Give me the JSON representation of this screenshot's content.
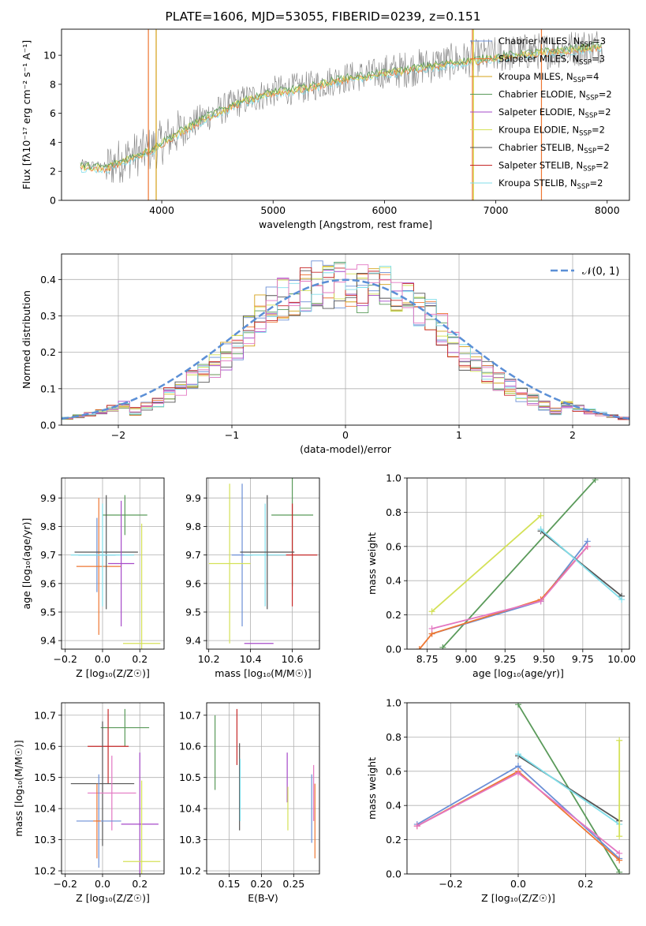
{
  "figure": {
    "title": "PLATE=1606, MJD=53055, FIBERID=0239, z=0.151"
  },
  "colors": {
    "Chabrier MILES": "#6b8fd6",
    "Salpeter MILES": "#ee7733",
    "Kroupa MILES": "#d4a017",
    "Chabrier ELODIE": "#5a9a5a",
    "Salpeter ELODIE": "#a64ac9",
    "Kroupa ELODIE": "#d4e157",
    "Chabrier STELIB": "#555555",
    "Salpeter STELIB": "#c62828",
    "Kroupa STELIB": "#80deea",
    "data": "#808080",
    "normal_curve": "#5b8fd6",
    "pink": "#e377c2",
    "grid": "#b0b0b0"
  },
  "chart_data": [
    {
      "id": "spectrum",
      "type": "line",
      "xlabel": "wavelength [Angstrom, rest frame]",
      "ylabel": "Flux [fλ10⁻¹⁷ erg cm⁻² s⁻¹ A⁻¹]",
      "xlim": [
        3100,
        8200
      ],
      "ylim": [
        0,
        11.8
      ],
      "xticks": [
        4000,
        5000,
        6000,
        7000,
        8000
      ],
      "yticks": [
        0,
        2,
        4,
        6,
        8,
        10
      ],
      "grid": false,
      "legend_position": "top-right",
      "legend": [
        {
          "label": "Chabrier MILES, N",
          "sub": "SSP",
          "tail": "=3",
          "key": "Chabrier MILES"
        },
        {
          "label": "Salpeter MILES, N",
          "sub": "SSP",
          "tail": "=3",
          "key": "Salpeter MILES"
        },
        {
          "label": "Kroupa MILES, N",
          "sub": "SSP",
          "tail": "=4",
          "key": "Kroupa MILES"
        },
        {
          "label": "Chabrier ELODIE, N",
          "sub": "SSP",
          "tail": "=2",
          "key": "Chabrier ELODIE"
        },
        {
          "label": "Salpeter ELODIE, N",
          "sub": "SSP",
          "tail": "=2",
          "key": "Salpeter ELODIE"
        },
        {
          "label": "Kroupa ELODIE, N",
          "sub": "SSP",
          "tail": "=2",
          "key": "Kroupa ELODIE"
        },
        {
          "label": "Chabrier STELIB, N",
          "sub": "SSP",
          "tail": "=2",
          "key": "Chabrier STELIB"
        },
        {
          "label": "Salpeter STELIB, N",
          "sub": "SSP",
          "tail": "=2",
          "key": "Salpeter STELIB"
        },
        {
          "label": "Kroupa STELIB, N",
          "sub": "SSP",
          "tail": "=2",
          "key": "Kroupa STELIB"
        }
      ],
      "data_trend": {
        "x": [
          3270,
          3500,
          3700,
          3900,
          4100,
          4400,
          4700,
          5000,
          5300,
          5600,
          6000,
          6400,
          6800,
          7200,
          7600,
          7950
        ],
        "y": [
          2.5,
          2.3,
          3.0,
          3.5,
          4.5,
          5.8,
          6.8,
          7.5,
          7.8,
          8.4,
          8.8,
          9.3,
          9.8,
          10.2,
          10.4,
          10.7
        ]
      },
      "model_trend": {
        "x": [
          3270,
          3500,
          3700,
          3900,
          4100,
          4400,
          4700,
          5000,
          5300,
          5600,
          6000,
          6400,
          6800,
          7200,
          7600,
          7950
        ],
        "y": [
          2.3,
          2.2,
          2.8,
          3.4,
          4.4,
          5.7,
          6.7,
          7.4,
          7.7,
          8.3,
          8.7,
          9.2,
          9.6,
          10.0,
          10.3,
          10.6
        ]
      }
    },
    {
      "id": "residuals",
      "type": "line",
      "xlabel": "(data-model)/error",
      "ylabel": "Normed distribution",
      "xlim": [
        -2.5,
        2.5
      ],
      "ylim": [
        0,
        0.47
      ],
      "xticks": [
        -2,
        -1,
        0,
        1,
        2
      ],
      "yticks": [
        0.0,
        0.1,
        0.2,
        0.3,
        0.4
      ],
      "grid": true,
      "legend_position": "top-right",
      "legend_label": "𝒩(0, 1)",
      "normal": {
        "mu": 0,
        "sigma": 1
      }
    },
    {
      "id": "age-vs-Z",
      "type": "scatter",
      "xlabel": "Z [log₁₀(Z/Z☉)]",
      "ylabel": "age  [log₁₀(age/yr)]",
      "xlim": [
        -0.22,
        0.33
      ],
      "ylim": [
        9.37,
        9.97
      ],
      "xticks": [
        -0.2,
        0.0,
        0.2
      ],
      "yticks": [
        9.4,
        9.5,
        9.6,
        9.7,
        9.8,
        9.9
      ],
      "grid": true,
      "points": [
        {
          "key": "Chabrier MILES",
          "x": -0.03,
          "xe": 0.1,
          "y": 9.7,
          "ye": 0.13
        },
        {
          "key": "Salpeter MILES",
          "x": -0.02,
          "xe": 0.12,
          "y": 9.66,
          "ye": 0.24
        },
        {
          "key": "Chabrier ELODIE",
          "x": 0.12,
          "xe": 0.12,
          "y": 9.84,
          "ye": 0.07
        },
        {
          "key": "Kroupa ELODIE",
          "x": 0.21,
          "xe": 0.1,
          "y": 9.39,
          "ye": 0.42
        },
        {
          "key": "Chabrier STELIB",
          "x": 0.02,
          "xe": 0.17,
          "y": 9.71,
          "ye": 0.2
        },
        {
          "key": "Kroupa STELIB",
          "x": 0.0,
          "xe": 0.17,
          "y": 9.7,
          "ye": 0.18
        },
        {
          "key": "Salpeter ELODIE",
          "x": 0.1,
          "xe": 0.07,
          "y": 9.67,
          "ye": 0.22
        }
      ]
    },
    {
      "id": "age-vs-mass",
      "type": "scatter",
      "xlabel": "mass [log₁₀(M/M☉)]",
      "ylabel": "",
      "xlim": [
        10.19,
        10.73
      ],
      "ylim": [
        9.37,
        9.97
      ],
      "xticks": [
        10.2,
        10.4,
        10.6
      ],
      "yticks": [
        9.4,
        9.5,
        9.6,
        9.7,
        9.8,
        9.9
      ],
      "grid": true,
      "points": [
        {
          "key": "Chabrier MILES",
          "x": 10.36,
          "xe": 0.05,
          "y": 9.7,
          "ye": 0.25
        },
        {
          "key": "Kroupa ELODIE",
          "x": 10.3,
          "xe": 0.1,
          "y": 9.67,
          "ye": 0.28
        },
        {
          "key": "Chabrier ELODIE",
          "x": 10.6,
          "xe": 0.1,
          "y": 9.84,
          "ye": 0.25
        },
        {
          "key": "Salpeter STELIB",
          "x": 10.6,
          "xe": 0.12,
          "y": 9.7,
          "ye": 0.18
        },
        {
          "key": "Kroupa STELIB",
          "x": 10.47,
          "xe": 0.1,
          "y": 9.7,
          "ye": 0.18
        },
        {
          "key": "Chabrier STELIB",
          "x": 10.48,
          "xe": 0.13,
          "y": 9.71,
          "ye": 0.2
        },
        {
          "key": "Salpeter ELODIE",
          "x": 10.44,
          "xe": 0.07,
          "y": 9.39,
          "ye": 0.0
        }
      ]
    },
    {
      "id": "massweight-vs-age",
      "type": "line",
      "xlabel": "age  [log₁₀(age/yr)]",
      "ylabel": "mass weight",
      "xlim": [
        8.62,
        10.05
      ],
      "ylim": [
        0,
        1.0
      ],
      "xticks": [
        8.75,
        9.0,
        9.25,
        9.5,
        9.75,
        10.0
      ],
      "yticks": [
        0.0,
        0.2,
        0.4,
        0.6,
        0.8,
        1.0
      ],
      "grid": true,
      "series": [
        {
          "key": "Kroupa ELODIE",
          "x": [
            8.78,
            9.48
          ],
          "y": [
            0.22,
            0.78
          ]
        },
        {
          "key": "Chabrier ELODIE",
          "x": [
            8.85,
            9.83
          ],
          "y": [
            0.01,
            0.99
          ]
        },
        {
          "key": "Chabrier MILES",
          "x": [
            8.78,
            9.48,
            9.78
          ],
          "y": [
            0.09,
            0.28,
            0.63
          ]
        },
        {
          "key": "Salpeter MILES",
          "x": [
            8.7,
            8.78,
            9.48,
            9.78
          ],
          "y": [
            0.0,
            0.09,
            0.29,
            0.6
          ]
        },
        {
          "key": "pink",
          "x": [
            8.78,
            9.48,
            9.78
          ],
          "y": [
            0.12,
            0.28,
            0.6
          ]
        },
        {
          "key": "Chabrier STELIB",
          "x": [
            9.48,
            10.0
          ],
          "y": [
            0.69,
            0.31
          ]
        },
        {
          "key": "Kroupa STELIB",
          "x": [
            9.48,
            10.0
          ],
          "y": [
            0.7,
            0.29
          ]
        }
      ]
    },
    {
      "id": "mass-vs-Z",
      "type": "scatter",
      "xlabel": "Z [log₁₀(Z/Z☉)]",
      "ylabel": "mass [log₁₀(M/M☉)]",
      "xlim": [
        -0.22,
        0.33
      ],
      "ylim": [
        10.19,
        10.74
      ],
      "xticks": [
        -0.2,
        0.0,
        0.2
      ],
      "yticks": [
        10.2,
        10.3,
        10.4,
        10.5,
        10.6,
        10.7
      ],
      "grid": true,
      "points": [
        {
          "key": "Chabrier ELODIE",
          "x": 0.12,
          "xe": 0.13,
          "y": 10.66,
          "ye": 0.06
        },
        {
          "key": "Salpeter STELIB",
          "x": 0.03,
          "xe": 0.11,
          "y": 10.6,
          "ye": 0.12
        },
        {
          "key": "Chabrier STELIB",
          "x": 0.0,
          "xe": 0.17,
          "y": 10.48,
          "ye": 0.2
        },
        {
          "key": "pink",
          "x": 0.05,
          "xe": 0.13,
          "y": 10.45,
          "ye": 0.12
        },
        {
          "key": "Chabrier MILES",
          "x": -0.02,
          "xe": 0.12,
          "y": 10.36,
          "ye": 0.15
        },
        {
          "key": "Salpeter ELODIE",
          "x": 0.2,
          "xe": 0.1,
          "y": 10.35,
          "ye": 0.23
        },
        {
          "key": "Kroupa ELODIE",
          "x": 0.21,
          "xe": 0.1,
          "y": 10.23,
          "ye": 0.26
        },
        {
          "key": "Salpeter MILES",
          "x": -0.03,
          "xe": 0.02,
          "y": 10.36,
          "ye": 0.12
        }
      ]
    },
    {
      "id": "mass-vs-ebv",
      "type": "scatter",
      "xlabel": "E(B-V)",
      "ylabel": "",
      "xlim": [
        0.115,
        0.29
      ],
      "ylim": [
        10.19,
        10.74
      ],
      "xticks": [
        0.15,
        0.2,
        0.25
      ],
      "yticks": [
        10.2,
        10.3,
        10.4,
        10.5,
        10.6,
        10.7
      ],
      "grid": true,
      "points": [
        {
          "key": "Chabrier ELODIE",
          "x": 0.128,
          "y": 10.58,
          "ye": 0.12
        },
        {
          "key": "Salpeter STELIB",
          "x": 0.162,
          "y": 10.63,
          "ye": 0.09
        },
        {
          "key": "Chabrier STELIB",
          "x": 0.166,
          "y": 10.47,
          "ye": 0.14
        },
        {
          "key": "Kroupa STELIB",
          "x": 0.167,
          "y": 10.46,
          "ye": 0.1
        },
        {
          "key": "Salpeter ELODIE",
          "x": 0.24,
          "y": 10.5,
          "ye": 0.08
        },
        {
          "key": "Kroupa ELODIE",
          "x": 0.241,
          "y": 10.4,
          "ye": 0.07
        },
        {
          "key": "Chabrier MILES",
          "x": 0.278,
          "y": 10.4,
          "ye": 0.11
        },
        {
          "key": "pink",
          "x": 0.281,
          "y": 10.45,
          "ye": 0.09
        },
        {
          "key": "Salpeter MILES",
          "x": 0.283,
          "y": 10.36,
          "ye": 0.12
        }
      ]
    },
    {
      "id": "massweight-vs-Z",
      "type": "line",
      "xlabel": "Z [log₁₀(Z/Z☉)]",
      "ylabel": "mass weight",
      "xlim": [
        -0.33,
        0.33
      ],
      "ylim": [
        0,
        1.0
      ],
      "xticks": [
        -0.2,
        0.0,
        0.2
      ],
      "yticks": [
        0.0,
        0.2,
        0.4,
        0.6,
        0.8,
        1.0
      ],
      "grid": true,
      "series": [
        {
          "key": "Chabrier ELODIE",
          "x": [
            0.0,
            0.3
          ],
          "y": [
            0.99,
            0.01
          ]
        },
        {
          "key": "Chabrier MILES",
          "x": [
            -0.3,
            0.0,
            0.3
          ],
          "y": [
            0.29,
            0.63,
            0.09
          ]
        },
        {
          "key": "Salpeter MILES",
          "x": [
            -0.3,
            0.0,
            0.3
          ],
          "y": [
            0.28,
            0.6,
            0.08
          ]
        },
        {
          "key": "pink",
          "x": [
            -0.3,
            0.0,
            0.3
          ],
          "y": [
            0.28,
            0.59,
            0.12
          ]
        },
        {
          "key": "Chabrier STELIB",
          "x": [
            0.0,
            0.3
          ],
          "y": [
            0.69,
            0.31
          ]
        },
        {
          "key": "Kroupa STELIB",
          "x": [
            0.0,
            0.3
          ],
          "y": [
            0.7,
            0.29
          ]
        },
        {
          "key": "Kroupa ELODIE",
          "x": [
            0.3,
            0.3
          ],
          "y": [
            0.22,
            0.78
          ]
        }
      ]
    }
  ]
}
